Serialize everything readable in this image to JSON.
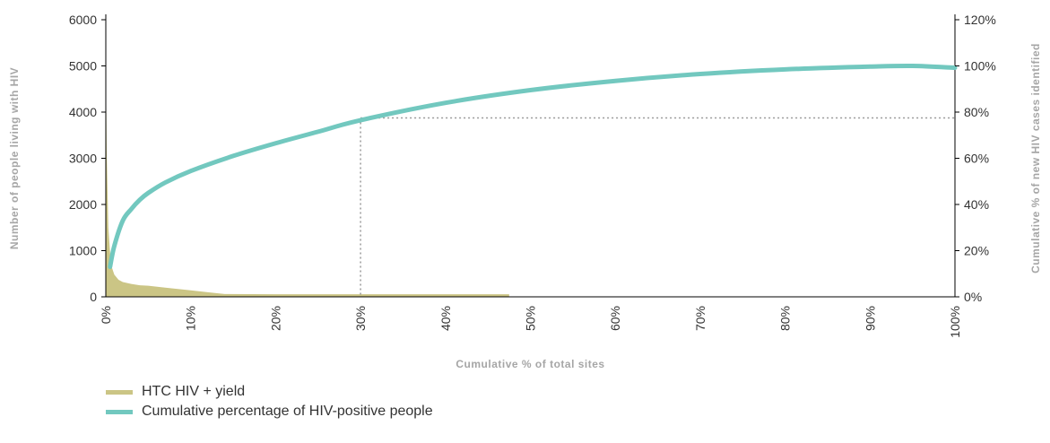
{
  "chart_data": {
    "type": "area+line",
    "xlabel": "Cumulative % of total sites",
    "ylabel_left": "Number of people living with HIV",
    "ylabel_right": "Cumulative % of new HIV cases identified",
    "x_ticks": [
      "0%",
      "10%",
      "20%",
      "30%",
      "40%",
      "50%",
      "60%",
      "70%",
      "80%",
      "90%",
      "100%"
    ],
    "y_left_ticks": [
      "0",
      "1000",
      "2000",
      "3000",
      "4000",
      "5000",
      "6000"
    ],
    "y_right_ticks": [
      "0%",
      "20%",
      "40%",
      "60%",
      "80%",
      "100%",
      "120%"
    ],
    "xlim": [
      0,
      100
    ],
    "ylim_left": [
      0,
      6000
    ],
    "ylim_right": [
      0,
      120
    ],
    "series": [
      {
        "name": "HTC HIV + yield",
        "type": "area",
        "axis": "left",
        "color": "#cbc585",
        "x": [
          0,
          0.1,
          0.3,
          0.6,
          1,
          1.5,
          2,
          3,
          4,
          5,
          7,
          10,
          12,
          14,
          20,
          30,
          40,
          47.5
        ],
        "y": [
          5200,
          3200,
          1500,
          700,
          480,
          370,
          320,
          280,
          250,
          240,
          200,
          140,
          100,
          60,
          55,
          55,
          55,
          55
        ]
      },
      {
        "name": "Cumulative percentage of HIV-positive people",
        "type": "line",
        "axis": "right",
        "color": "#72c8bf",
        "x": [
          0.5,
          1,
          2,
          3,
          4,
          5,
          7,
          10,
          15,
          20,
          25,
          30,
          40,
          50,
          60,
          70,
          80,
          90,
          95,
          100
        ],
        "y": [
          13,
          22,
          33,
          38,
          42,
          45,
          49.5,
          54.5,
          61,
          66.5,
          71.5,
          76.5,
          84,
          89.5,
          93.5,
          96.5,
          98.5,
          99.7,
          100,
          99.2
        ]
      }
    ],
    "reference_lines": {
      "x": 30,
      "y_right": 77.5,
      "style": "dotted",
      "color": "#999999"
    },
    "legend": "bottom-left",
    "grid": false
  }
}
